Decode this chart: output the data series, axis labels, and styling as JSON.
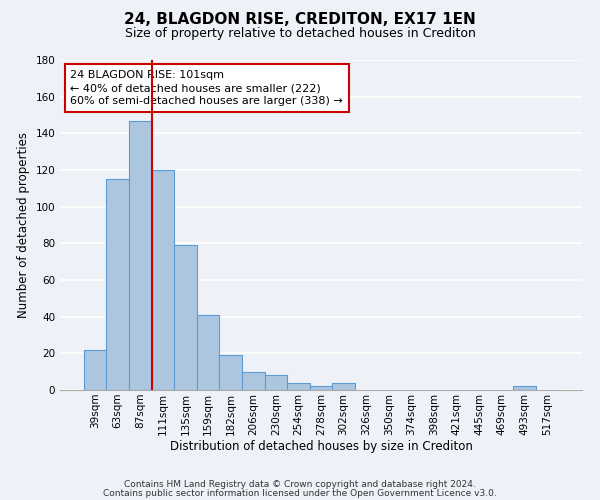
{
  "title": "24, BLAGDON RISE, CREDITON, EX17 1EN",
  "subtitle": "Size of property relative to detached houses in Crediton",
  "xlabel": "Distribution of detached houses by size in Crediton",
  "ylabel": "Number of detached properties",
  "categories": [
    "39sqm",
    "63sqm",
    "87sqm",
    "111sqm",
    "135sqm",
    "159sqm",
    "182sqm",
    "206sqm",
    "230sqm",
    "254sqm",
    "278sqm",
    "302sqm",
    "326sqm",
    "350sqm",
    "374sqm",
    "398sqm",
    "421sqm",
    "445sqm",
    "469sqm",
    "493sqm",
    "517sqm"
  ],
  "values": [
    22,
    115,
    147,
    120,
    79,
    41,
    19,
    10,
    8,
    4,
    2,
    4,
    0,
    0,
    0,
    0,
    0,
    0,
    0,
    2,
    0
  ],
  "bar_color": "#adc6e0",
  "bar_edge_color": "#5b9bd5",
  "background_color": "#eef2f8",
  "grid_color": "#ffffff",
  "ylim": [
    0,
    180
  ],
  "yticks": [
    0,
    20,
    40,
    60,
    80,
    100,
    120,
    140,
    160,
    180
  ],
  "vline_x_index": 3.0,
  "property_line_label": "24 BLAGDON RISE: 101sqm",
  "annotation_line1": "← 40% of detached houses are smaller (222)",
  "annotation_line2": "60% of semi-detached houses are larger (338) →",
  "annotation_box_color": "#ffffff",
  "annotation_box_edge": "#cc0000",
  "vline_color": "#cc0000",
  "footnote1": "Contains HM Land Registry data © Crown copyright and database right 2024.",
  "footnote2": "Contains public sector information licensed under the Open Government Licence v3.0.",
  "title_fontsize": 11,
  "subtitle_fontsize": 9,
  "axis_label_fontsize": 8.5,
  "tick_fontsize": 7.5,
  "annotation_fontsize": 8,
  "footnote_fontsize": 6.5
}
